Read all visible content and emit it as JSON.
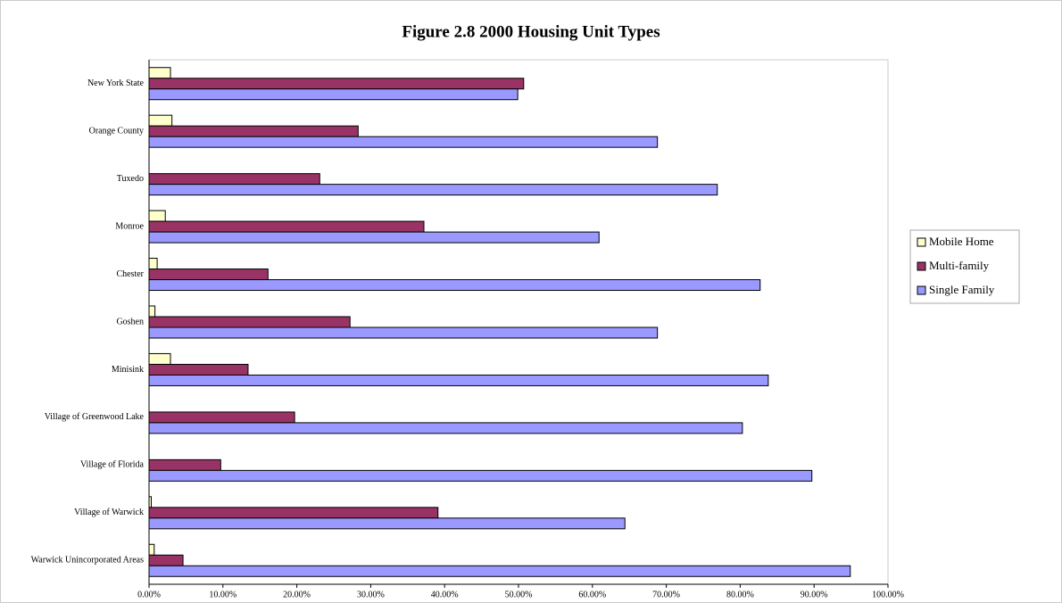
{
  "chart_data": {
    "type": "hbar",
    "title": "Figure 2.8  2000 Housing Unit Types",
    "categories": [
      "New York State",
      "Orange County",
      "Tuxedo",
      "Monroe",
      "Chester",
      "Goshen",
      "Minisink",
      "Village of Greenwood Lake",
      "Village of Florida",
      "Village of Warwick",
      "Warwick Unincorporated Areas"
    ],
    "series": [
      {
        "name": "Mobile Home",
        "color": "#ffffcc",
        "values": [
          2.9,
          3.1,
          0,
          2.2,
          1.1,
          0.8,
          2.9,
          0,
          0,
          0.3,
          0.7
        ]
      },
      {
        "name": "Multi-family",
        "color": "#993366",
        "values": [
          50.7,
          28.3,
          23.1,
          37.2,
          16.1,
          27.2,
          13.4,
          19.7,
          9.7,
          39.1,
          4.6
        ]
      },
      {
        "name": "Single Family",
        "color": "#9999ff",
        "values": [
          49.9,
          68.8,
          76.9,
          60.9,
          82.7,
          68.8,
          83.8,
          80.3,
          89.7,
          64.4,
          94.9
        ]
      }
    ],
    "xlim": [
      0,
      100
    ],
    "xticks": [
      {
        "value": 0,
        "label": "0.00%"
      },
      {
        "value": 10,
        "label": "10.00%"
      },
      {
        "value": 20,
        "label": "20.00%"
      },
      {
        "value": 30,
        "label": "30.00%"
      },
      {
        "value": 40,
        "label": "40.00%"
      },
      {
        "value": 50,
        "label": "50.00%"
      },
      {
        "value": 60,
        "label": "60.00%"
      },
      {
        "value": 70,
        "label": "70.00%"
      },
      {
        "value": 80,
        "label": "80.00%"
      },
      {
        "value": 90,
        "label": "90.00%"
      },
      {
        "value": 100,
        "label": "100.00%"
      }
    ],
    "legend": "right"
  }
}
